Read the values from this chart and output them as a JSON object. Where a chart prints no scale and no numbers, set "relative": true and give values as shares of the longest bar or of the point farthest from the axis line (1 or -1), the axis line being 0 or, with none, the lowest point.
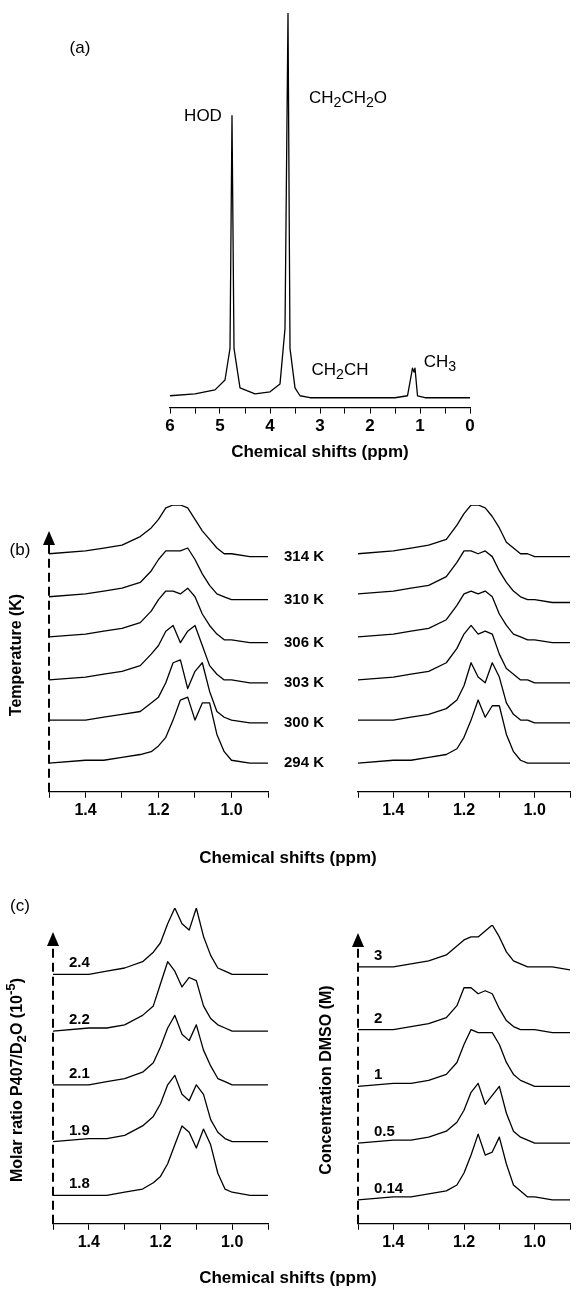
{
  "chart_data": [
    {
      "type": "line",
      "xlabel": "Chemical shifts (ppm)",
      "relative": true,
      "legend": false,
      "marker": "none",
      "xlim": [
        6,
        0
      ],
      "xticks": [
        6,
        {
          "value": 5.5,
          "label": null
        },
        5,
        {
          "value": 4.5,
          "label": null
        },
        4,
        {
          "value": 3.5,
          "label": null
        },
        3,
        {
          "value": 2.5,
          "label": null
        },
        2,
        {
          "value": 1.5,
          "label": null
        },
        1,
        {
          "value": 0.5,
          "label": null
        },
        0
      ],
      "x": [
        6,
        5.5,
        5.1,
        4.9,
        4.8,
        4.76,
        4.72,
        4.6,
        4.3,
        4.0,
        3.8,
        3.7,
        3.64,
        3.6,
        3.55,
        3.5,
        3.4,
        3.2,
        3.0,
        2.0,
        1.5,
        1.25,
        1.15,
        1.12,
        1.1,
        1.05,
        0.9,
        0.5,
        0
      ],
      "series": [
        {
          "color": "#000000",
          "values": [
            0.03,
            0.035,
            0.045,
            0.07,
            0.15,
            0.74,
            0.15,
            0.05,
            0.035,
            0.04,
            0.06,
            0.2,
            1,
            0.15,
            0.1,
            0.05,
            0.03,
            0.025,
            0.025,
            0.025,
            0.025,
            0.03,
            0.1,
            0.09,
            0.1,
            0.03,
            0.025,
            0.025,
            0.025
          ]
        }
      ],
      "annotations": [
        "(a)",
        "HOD",
        "CH$_{2}$CH$_{2}$O",
        "CH$_{2}$CH",
        "CH$_{3}$"
      ]
    },
    {
      "type": "line",
      "xlabel": "Chemical shifts (ppm)",
      "ylabel": "Temperature (K)",
      "relative": true,
      "legend": false,
      "marker": "none",
      "xlim": [
        1.5,
        0.9
      ],
      "xticks": [
        {
          "value": 1.5,
          "label": null
        },
        1.4,
        {
          "value": 1.3,
          "label": null
        },
        1.2,
        {
          "value": 1.1,
          "label": null
        },
        {
          "value": 1.0,
          "label": "1.0"
        },
        {
          "value": 0.9,
          "label": null
        }
      ],
      "x": [
        1.5,
        1.4,
        1.35,
        1.3,
        1.25,
        1.22,
        1.2,
        1.18,
        1.16,
        1.14,
        1.12,
        1.1,
        1.08,
        1.06,
        1.04,
        1.02,
        1.0,
        0.95,
        0.9
      ],
      "series": [
        {
          "name": "314 K",
          "color": "#000000",
          "values": [
            0.83,
            0.84,
            0.85,
            0.86,
            0.89,
            0.92,
            0.95,
            0.99,
            1,
            1,
            0.99,
            0.95,
            0.91,
            0.88,
            0.85,
            0.83,
            0.83,
            0.82,
            0.82
          ]
        },
        {
          "name": "310 K",
          "color": "#000000",
          "values": [
            0.68,
            0.69,
            0.7,
            0.71,
            0.73,
            0.77,
            0.81,
            0.84,
            0.84,
            0.84,
            0.85,
            0.81,
            0.76,
            0.72,
            0.69,
            0.68,
            0.67,
            0.67,
            0.67
          ]
        },
        {
          "name": "306 K",
          "color": "#000000",
          "values": [
            0.54,
            0.55,
            0.56,
            0.57,
            0.59,
            0.63,
            0.67,
            0.7,
            0.7,
            0.69,
            0.71,
            0.68,
            0.62,
            0.58,
            0.55,
            0.53,
            0.53,
            0.52,
            0.52
          ]
        },
        {
          "name": "303 K",
          "color": "#000000",
          "values": [
            0.39,
            0.4,
            0.41,
            0.42,
            0.44,
            0.48,
            0.51,
            0.56,
            0.58,
            0.52,
            0.56,
            0.58,
            0.51,
            0.44,
            0.41,
            0.39,
            0.39,
            0.38,
            0.38
          ]
        },
        {
          "name": "300 K",
          "color": "#000000",
          "values": [
            0.25,
            0.25,
            0.26,
            0.27,
            0.28,
            0.31,
            0.33,
            0.38,
            0.45,
            0.46,
            0.36,
            0.42,
            0.45,
            0.35,
            0.28,
            0.26,
            0.25,
            0.24,
            0.24
          ]
        },
        {
          "name": "294 K",
          "color": "#000000",
          "values": [
            0.1,
            0.11,
            0.11,
            0.12,
            0.13,
            0.14,
            0.16,
            0.19,
            0.25,
            0.32,
            0.33,
            0.25,
            0.31,
            0.31,
            0.2,
            0.14,
            0.11,
            0.1,
            0.1
          ]
        }
      ],
      "annotations": [
        "(b)"
      ]
    },
    {
      "type": "line",
      "relative": true,
      "legend": false,
      "marker": "none",
      "xlim": [
        1.5,
        0.9
      ],
      "xticks": [
        {
          "value": 1.5,
          "label": null
        },
        1.4,
        {
          "value": 1.3,
          "label": null
        },
        1.2,
        {
          "value": 1.1,
          "label": null
        },
        {
          "value": 1.0,
          "label": "1.0"
        },
        {
          "value": 0.9,
          "label": null
        }
      ],
      "x": [
        1.5,
        1.4,
        1.35,
        1.3,
        1.25,
        1.22,
        1.2,
        1.18,
        1.16,
        1.14,
        1.12,
        1.1,
        1.08,
        1.06,
        1.04,
        1.02,
        1.0,
        0.95,
        0.9
      ],
      "series": [
        {
          "color": "#000000",
          "values": [
            0.83,
            0.84,
            0.85,
            0.86,
            0.88,
            0.93,
            0.97,
            1,
            1,
            0.99,
            0.96,
            0.92,
            0.87,
            0.85,
            0.83,
            0.83,
            0.82,
            0.82,
            0.82
          ]
        },
        {
          "color": "#000000",
          "values": [
            0.69,
            0.7,
            0.71,
            0.72,
            0.75,
            0.8,
            0.84,
            0.84,
            0.83,
            0.84,
            0.82,
            0.77,
            0.73,
            0.7,
            0.68,
            0.67,
            0.67,
            0.66,
            0.66
          ]
        },
        {
          "color": "#000000",
          "values": [
            0.54,
            0.55,
            0.56,
            0.57,
            0.6,
            0.65,
            0.69,
            0.7,
            0.69,
            0.7,
            0.68,
            0.62,
            0.58,
            0.55,
            0.54,
            0.53,
            0.53,
            0.52,
            0.52
          ]
        },
        {
          "color": "#000000",
          "values": [
            0.39,
            0.4,
            0.41,
            0.42,
            0.45,
            0.5,
            0.55,
            0.58,
            0.55,
            0.56,
            0.55,
            0.48,
            0.43,
            0.41,
            0.39,
            0.39,
            0.38,
            0.38,
            0.38
          ]
        },
        {
          "color": "#000000",
          "values": [
            0.25,
            0.25,
            0.26,
            0.27,
            0.29,
            0.32,
            0.37,
            0.45,
            0.4,
            0.38,
            0.45,
            0.4,
            0.31,
            0.27,
            0.25,
            0.25,
            0.24,
            0.24,
            0.24
          ]
        },
        {
          "color": "#000000",
          "values": [
            0.1,
            0.11,
            0.11,
            0.12,
            0.13,
            0.15,
            0.19,
            0.25,
            0.32,
            0.26,
            0.3,
            0.3,
            0.2,
            0.14,
            0.11,
            0.1,
            0.1,
            0.1,
            0.1
          ]
        }
      ]
    },
    {
      "type": "line",
      "xlabel": "Chemical shifts (ppm)",
      "ylabel": "Molar ratio P407/D$_{2}$O (10$^{-5}$)",
      "relative": true,
      "legend": false,
      "marker": "none",
      "xlim": [
        1.5,
        0.9
      ],
      "xticks": [
        {
          "value": 1.5,
          "label": null
        },
        1.4,
        {
          "value": 1.3,
          "label": null
        },
        1.2,
        {
          "value": 1.1,
          "label": null
        },
        {
          "value": 1.0,
          "label": "1.0"
        },
        {
          "value": 0.9,
          "label": null
        }
      ],
      "x": [
        1.5,
        1.4,
        1.35,
        1.3,
        1.25,
        1.22,
        1.2,
        1.18,
        1.16,
        1.14,
        1.12,
        1.1,
        1.08,
        1.06,
        1.04,
        1.02,
        1.0,
        0.95,
        0.9
      ],
      "series": [
        {
          "name": "2.4",
          "color": "#000000",
          "values": [
            0.79,
            0.79,
            0.8,
            0.81,
            0.83,
            0.86,
            0.89,
            0.95,
            1,
            0.95,
            0.93,
            1,
            0.91,
            0.85,
            0.81,
            0.8,
            0.79,
            0.79,
            0.79
          ]
        },
        {
          "name": "2.2",
          "color": "#000000",
          "values": [
            0.61,
            0.62,
            0.62,
            0.63,
            0.66,
            0.69,
            0.76,
            0.83,
            0.8,
            0.75,
            0.78,
            0.77,
            0.69,
            0.65,
            0.63,
            0.62,
            0.61,
            0.61,
            0.61
          ]
        },
        {
          "name": "2.1",
          "color": "#000000",
          "values": [
            0.44,
            0.44,
            0.45,
            0.46,
            0.48,
            0.51,
            0.56,
            0.62,
            0.66,
            0.6,
            0.58,
            0.63,
            0.55,
            0.5,
            0.46,
            0.45,
            0.44,
            0.44,
            0.44
          ]
        },
        {
          "name": "1.9",
          "color": "#000000",
          "values": [
            0.26,
            0.27,
            0.27,
            0.28,
            0.31,
            0.34,
            0.38,
            0.44,
            0.47,
            0.41,
            0.39,
            0.44,
            0.41,
            0.33,
            0.29,
            0.27,
            0.26,
            0.26,
            0.26
          ]
        },
        {
          "name": "1.8",
          "color": "#000000",
          "values": [
            0.09,
            0.09,
            0.09,
            0.1,
            0.11,
            0.13,
            0.15,
            0.19,
            0.25,
            0.31,
            0.29,
            0.24,
            0.3,
            0.25,
            0.16,
            0.11,
            0.1,
            0.09,
            0.09
          ]
        }
      ],
      "annotations": [
        "(c)"
      ]
    },
    {
      "type": "line",
      "ylabel": "Concentration DMSO  (M)",
      "relative": true,
      "legend": false,
      "marker": "none",
      "xlim": [
        1.5,
        0.9
      ],
      "xticks": [
        {
          "value": 1.5,
          "label": null
        },
        1.4,
        {
          "value": 1.3,
          "label": null
        },
        1.2,
        {
          "value": 1.1,
          "label": null
        },
        {
          "value": 1.0,
          "label": "1.0"
        },
        {
          "value": 0.9,
          "label": null
        }
      ],
      "x": [
        1.5,
        1.4,
        1.35,
        1.3,
        1.25,
        1.22,
        1.2,
        1.18,
        1.16,
        1.14,
        1.12,
        1.1,
        1.08,
        1.06,
        1.04,
        1.02,
        1.0,
        0.95,
        0.9
      ],
      "series": [
        {
          "name": "3",
          "color": "#000000",
          "values": [
            0.86,
            0.86,
            0.87,
            0.88,
            0.9,
            0.93,
            0.95,
            0.96,
            0.96,
            0.98,
            1,
            0.96,
            0.91,
            0.88,
            0.87,
            0.86,
            0.86,
            0.86,
            0.85
          ]
        },
        {
          "name": "2",
          "color": "#000000",
          "values": [
            0.65,
            0.65,
            0.66,
            0.67,
            0.69,
            0.73,
            0.79,
            0.79,
            0.77,
            0.78,
            0.77,
            0.72,
            0.68,
            0.66,
            0.65,
            0.65,
            0.65,
            0.64,
            0.64
          ]
        },
        {
          "name": "1",
          "color": "#000000",
          "values": [
            0.46,
            0.47,
            0.47,
            0.48,
            0.5,
            0.54,
            0.6,
            0.65,
            0.64,
            0.64,
            0.64,
            0.6,
            0.54,
            0.5,
            0.48,
            0.47,
            0.46,
            0.46,
            0.46
          ]
        },
        {
          "name": "0.5",
          "color": "#000000",
          "values": [
            0.27,
            0.28,
            0.28,
            0.29,
            0.31,
            0.34,
            0.38,
            0.44,
            0.47,
            0.4,
            0.43,
            0.46,
            0.37,
            0.31,
            0.29,
            0.28,
            0.27,
            0.27,
            0.27
          ]
        },
        {
          "name": "0.14",
          "color": "#000000",
          "values": [
            0.08,
            0.09,
            0.09,
            0.1,
            0.11,
            0.13,
            0.17,
            0.23,
            0.3,
            0.23,
            0.24,
            0.29,
            0.2,
            0.13,
            0.11,
            0.09,
            0.09,
            0.08,
            0.08
          ]
        }
      ]
    }
  ]
}
